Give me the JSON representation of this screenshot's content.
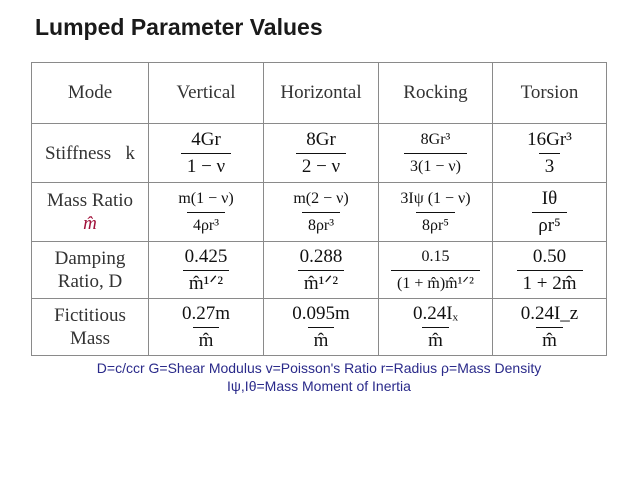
{
  "title": "Lumped Parameter Values",
  "headers": [
    "Mode",
    "Vertical",
    "Horizontal",
    "Rocking",
    "Torsion"
  ],
  "rows": [
    {
      "label": "Stiffness   k",
      "label_line2": "",
      "cells": [
        {
          "num": "4Gr",
          "den": "1 − ν"
        },
        {
          "num": "8Gr",
          "den": "2 − ν"
        },
        {
          "num": "8Gr³",
          "den": "3(1 − ν)"
        },
        {
          "num": "16Gr³",
          "den": "3"
        }
      ]
    },
    {
      "label": "Mass Ratio",
      "label_line2": "m̂",
      "cells": [
        {
          "num": "m(1 − ν)",
          "den": "4ρr³"
        },
        {
          "num": "m(2 − ν)",
          "den": "8ρr³"
        },
        {
          "num": "3Iψ (1 − ν)",
          "den": "8ρr⁵"
        },
        {
          "num": "Iθ",
          "den": "ρr⁵"
        }
      ]
    },
    {
      "label": "Damping",
      "label_line2": "Ratio, D",
      "cells": [
        {
          "num": "0.425",
          "den": "m̂¹ᐟ²"
        },
        {
          "num": "0.288",
          "den": "m̂¹ᐟ²"
        },
        {
          "num": "0.15",
          "den": "(1 + m̂)m̂¹ᐟ²"
        },
        {
          "num": "0.50",
          "den": "1 + 2m̂"
        }
      ]
    },
    {
      "label": "Fictitious",
      "label_line2": "Mass",
      "cells": [
        {
          "num": "0.27m",
          "den": "m̂"
        },
        {
          "num": "0.095m",
          "den": "m̂"
        },
        {
          "num": "0.24Iₓ",
          "den": "m̂"
        },
        {
          "num": "0.24I_z",
          "den": "m̂"
        }
      ]
    }
  ],
  "notes": {
    "line1": "D=c/ccr  G=Shear Modulus  v=Poisson's Ratio  r=Radius ρ=Mass Density",
    "line2": "Iψ,Iθ=Mass Moment of Inertia"
  }
}
